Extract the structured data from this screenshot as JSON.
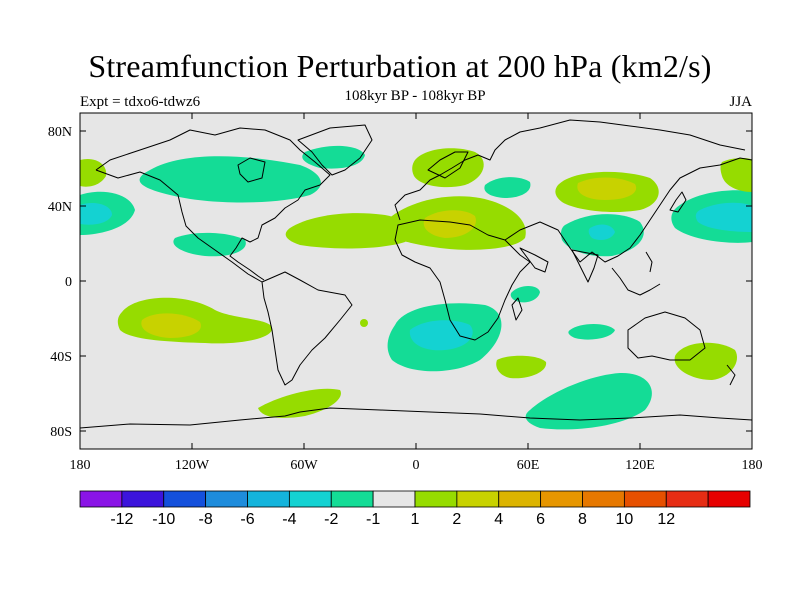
{
  "header": {
    "title": "Streamfunction Perturbation at 200 hPa (km2/s)",
    "left": "Expt = tdxo6-tdwz6",
    "center": "108kyr BP - 108kyr BP",
    "right": "JJA"
  },
  "axes": {
    "y_labels": [
      "80N",
      "40N",
      "0",
      "40S",
      "80S"
    ],
    "x_labels": [
      "180",
      "120W",
      "60W",
      "0",
      "60E",
      "120E",
      "180"
    ]
  },
  "colorbar": {
    "colors": [
      "#8a14e6",
      "#3c14dc",
      "#1450dc",
      "#1e8cdc",
      "#14b4dc",
      "#14d2d2",
      "#14dc96",
      "#e6e6e6",
      "#96dc00",
      "#c8d200",
      "#dcb400",
      "#e69600",
      "#e67800",
      "#e65000",
      "#e62d14",
      "#e60000"
    ],
    "labels": [
      "-12",
      "-10",
      "-8",
      "-6",
      "-4",
      "-2",
      "-1",
      "1",
      "2",
      "4",
      "6",
      "8",
      "10",
      "12"
    ]
  },
  "colors": {
    "background_field": "#e6e6e6",
    "neg_light": "#14dc96",
    "neg_mid": "#14d2d2",
    "pos_light": "#96dc00",
    "pos_mid": "#c8d200"
  }
}
